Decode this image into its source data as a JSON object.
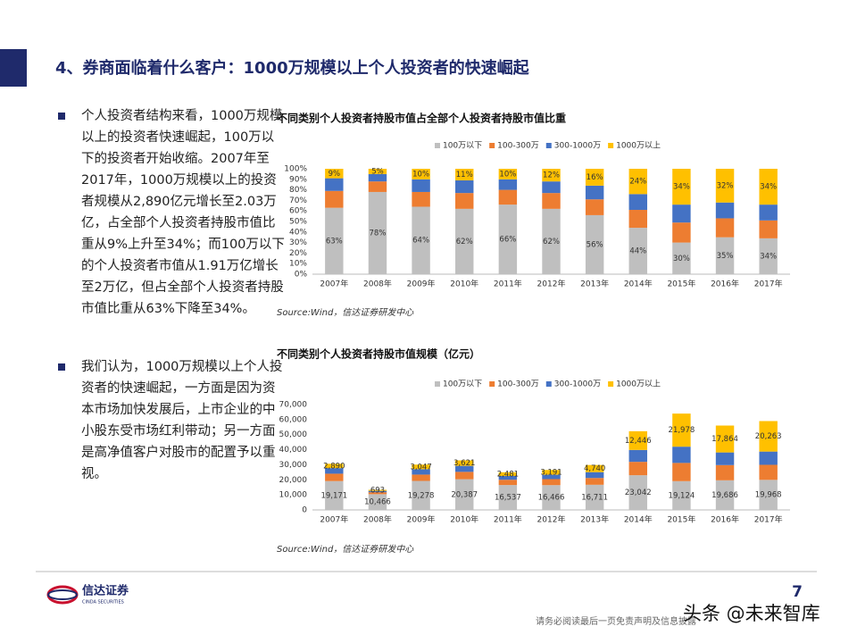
{
  "header": {
    "title": "4、券商面临着什么客户：1000万规模以上个人投资者的快速崛起"
  },
  "bullets": [
    "个人投资者结构来看，1000万规模以上的投资者快速崛起，100万以下的投资者开始收缩。2007年至2017年，1000万规模以上的投资者规模从2,890亿元增长至2.03万亿，占全部个人投资者持股市值比重从9%上升至34%；而100万以下的个人投资者市值从1.91万亿增长至2万亿，但占全部个人投资者持股市值比重从63%下降至34%。",
    "我们认为，1000万规模以上个人投资者的快速崛起，一方面是因为资本市场加快发展后，上市企业的中小股东受市场红利带动；另一方面是高净值客户对股市的配置予以重视。"
  ],
  "chart_data": [
    {
      "type": "stacked_bar",
      "title": "不同类别个人投资者持股市值占全部个人投资者持股市值比重",
      "categories": [
        "2007年",
        "2008年",
        "2009年",
        "2010年",
        "2011年",
        "2012年",
        "2013年",
        "2014年",
        "2015年",
        "2016年",
        "2017年"
      ],
      "series": [
        {
          "name": "100万以下",
          "color": "#bfbfbf",
          "values": [
            63,
            78,
            64,
            62,
            66,
            62,
            56,
            44,
            30,
            35,
            34
          ],
          "value_labels": [
            "63%",
            "78%",
            "64%",
            "62%",
            "66%",
            "62%",
            "56%",
            "44%",
            "30%",
            "35%",
            "34%"
          ]
        },
        {
          "name": "100-300万",
          "color": "#ed7d31",
          "values": [
            16,
            10,
            14,
            15,
            14,
            15,
            15,
            17,
            19,
            18,
            17
          ]
        },
        {
          "name": "300-1000万",
          "color": "#4472c4",
          "values": [
            12,
            7,
            12,
            12,
            10,
            11,
            13,
            15,
            17,
            15,
            15
          ]
        },
        {
          "name": "1000万以上",
          "color": "#ffc000",
          "values": [
            9,
            5,
            10,
            11,
            10,
            12,
            16,
            24,
            34,
            32,
            34
          ],
          "value_labels": [
            "9%",
            "5%",
            "10%",
            "11%",
            "10%",
            "12%",
            "16%",
            "24%",
            "34%",
            "32%",
            "34%"
          ]
        }
      ],
      "ylim": [
        0,
        100
      ],
      "yticks": [
        {
          "value": 0,
          "label": "0%"
        },
        {
          "value": 10,
          "label": "10%"
        },
        {
          "value": 20,
          "label": "20%"
        },
        {
          "value": 30,
          "label": "30%"
        },
        {
          "value": 40,
          "label": "40%"
        },
        {
          "value": 50,
          "label": "50%"
        },
        {
          "value": 60,
          "label": "60%"
        },
        {
          "value": 70,
          "label": "70%"
        },
        {
          "value": 80,
          "label": "80%"
        },
        {
          "value": 90,
          "label": "90%"
        },
        {
          "value": 100,
          "label": "100%"
        }
      ],
      "source": "Source:Wind，信达证券研发中心"
    },
    {
      "type": "stacked_bar",
      "title": "不同类别个人投资者持股市值规模（亿元）",
      "categories": [
        "2007年",
        "2008年",
        "2009年",
        "2010年",
        "2011年",
        "2012年",
        "2013年",
        "2014年",
        "2015年",
        "2016年",
        "2017年"
      ],
      "series": [
        {
          "name": "100万以下",
          "color": "#bfbfbf",
          "values": [
            19171,
            10466,
            19278,
            20387,
            16537,
            16466,
            16711,
            23042,
            19124,
            19686,
            19968
          ],
          "value_labels": [
            "19,171",
            "10,466",
            "19,278",
            "20,387",
            "16,537",
            "16,466",
            "16,711",
            "23,042",
            "19,124",
            "19,686",
            "19,968"
          ]
        },
        {
          "name": "100-300万",
          "color": "#ed7d31",
          "values": [
            4900,
            1300,
            4200,
            4900,
            3500,
            4000,
            4500,
            8900,
            12100,
            10100,
            10000
          ]
        },
        {
          "name": "300-1000万",
          "color": "#4472c4",
          "values": [
            3700,
            900,
            3600,
            4000,
            2500,
            2900,
            3900,
            7900,
            10800,
            8400,
            8800
          ]
        },
        {
          "name": "1000万以上",
          "color": "#ffc000",
          "values": [
            2890,
            693,
            3047,
            3621,
            2481,
            3191,
            4740,
            12446,
            21978,
            17864,
            20263
          ],
          "value_labels": [
            "2,890",
            "693",
            "3,047",
            "3,621",
            "2,481",
            "3,191",
            "4,740",
            "12,446",
            "21,978",
            "17,864",
            "20,263"
          ]
        }
      ],
      "ylim": [
        0,
        70000
      ],
      "yticks": [
        0,
        {
          "value": 10000,
          "label": "10,000"
        },
        {
          "value": 20000,
          "label": "20,000"
        },
        {
          "value": 30000,
          "label": "30,000"
        },
        {
          "value": 40000,
          "label": "40,000"
        },
        {
          "value": 50000,
          "label": "50,000"
        },
        {
          "value": 60000,
          "label": "60,000"
        },
        {
          "value": 70000,
          "label": "70,000"
        }
      ],
      "source": "Source:Wind，信达证券研发中心"
    }
  ],
  "footer": {
    "logo": "信达证券",
    "logo_sub": "CINDA SECURITIES",
    "page": "7",
    "disclaimer": "请务必阅读最后一页免责声明及信息披露",
    "watermark": "头条 @未来智库"
  }
}
